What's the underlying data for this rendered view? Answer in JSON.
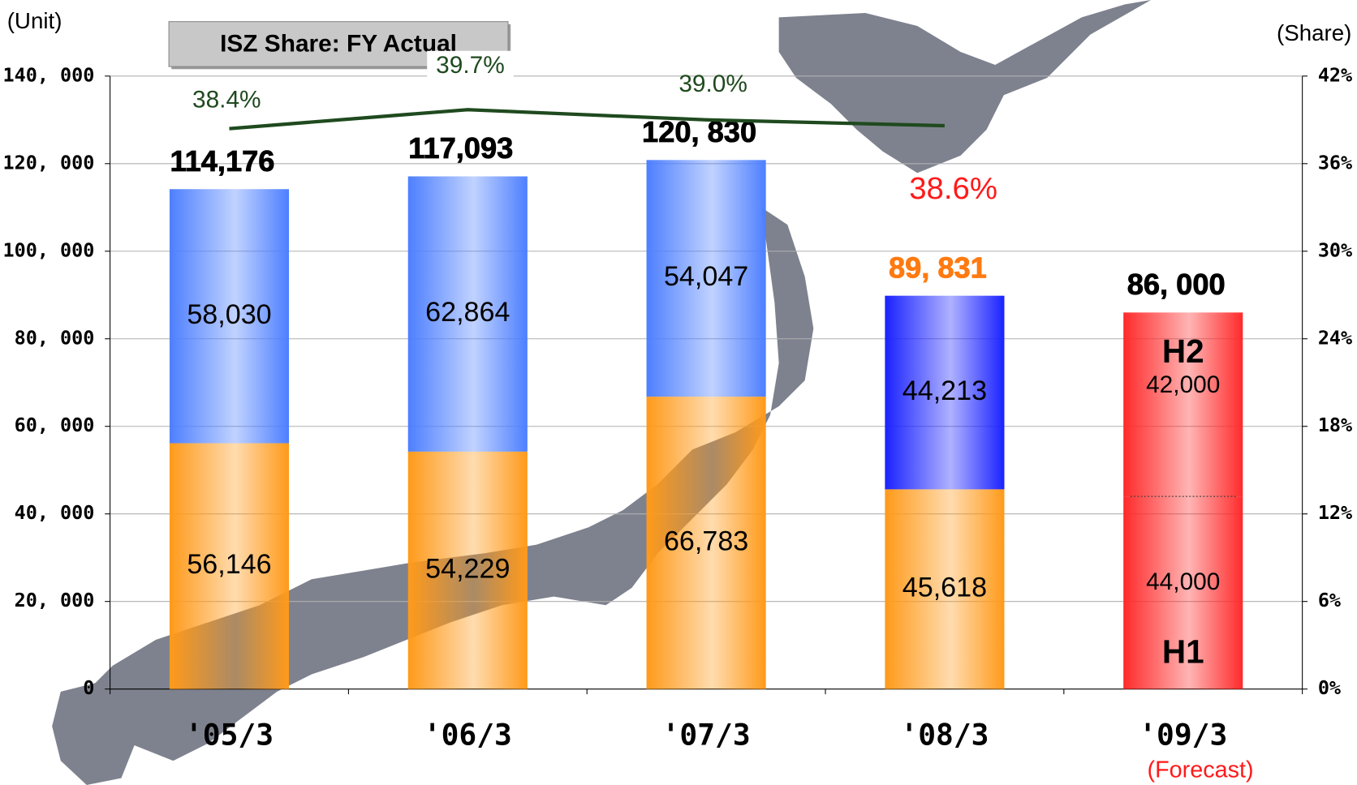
{
  "chart_data": {
    "type": "bar",
    "stacked": true,
    "title": "ISZ Share: FY Actual",
    "ylabel": "(Unit)",
    "y2label": "(Share)",
    "categories": [
      "'05/3",
      "'06/3",
      "'07/3",
      "'08/3",
      "'09/3"
    ],
    "category_notes": [
      null,
      null,
      null,
      null,
      "(Forecast)"
    ],
    "series": [
      {
        "values": [
          56146,
          54229,
          66783,
          45618,
          44000
        ],
        "value_labels": [
          "56,146",
          "54,229",
          "66,783",
          "45,618",
          "44,000"
        ],
        "colors": [
          "#ff9a1a",
          "#ff9a1a",
          "#ff9a1a",
          "#ff9a1a",
          "#ff2a2a"
        ]
      },
      {
        "values": [
          58030,
          62864,
          54047,
          44213,
          42000
        ],
        "value_labels": [
          "58,030",
          "62,864",
          "54,047",
          "44,213",
          "42,000"
        ],
        "colors": [
          "#4d7fff",
          "#4d7fff",
          "#4d7fff",
          "#1a22ff",
          "#ff2a2a"
        ]
      }
    ],
    "segment_annotations": [
      "H1",
      "H2"
    ],
    "totals": {
      "values": [
        114176,
        117093,
        120830,
        89831,
        86000
      ],
      "value_labels": [
        "114,176",
        "117,093",
        "120, 830",
        "89, 831",
        "86, 000"
      ],
      "colors": [
        "#000000",
        "#000000",
        "#000000",
        "#ff7a10",
        "#000000"
      ]
    },
    "share": {
      "type": "line",
      "axis": "y2",
      "color": "#1f4a1f",
      "values": [
        38.4,
        39.7,
        39.0,
        38.6,
        null
      ],
      "value_labels": [
        "38.4%",
        "39.7%",
        "39.0%",
        "38.6%",
        null
      ],
      "label_colors": [
        "#1f4a1f",
        "#1f4a1f",
        "#1f4a1f",
        "#ff1a1a",
        null
      ]
    },
    "ylim": [
      0,
      140000
    ],
    "yticks": [
      0,
      {
        "value": 20000,
        "label": "20, 000"
      },
      {
        "value": 40000,
        "label": "40, 000"
      },
      {
        "value": 60000,
        "label": "60, 000"
      },
      {
        "value": 80000,
        "label": "80, 000"
      },
      {
        "value": 100000,
        "label": "100, 000"
      },
      {
        "value": 120000,
        "label": "120, 000"
      },
      {
        "value": 140000,
        "label": "140, 000"
      }
    ],
    "y2lim": [
      0,
      42
    ],
    "y2ticks": [
      {
        "value": 0,
        "label": "0%"
      },
      {
        "value": 6,
        "label": "6%"
      },
      {
        "value": 12,
        "label": "12%"
      },
      {
        "value": 18,
        "label": "18%"
      },
      {
        "value": 24,
        "label": "24%"
      },
      {
        "value": 30,
        "label": "30%"
      },
      {
        "value": 36,
        "label": "36%"
      },
      {
        "value": 42,
        "label": "42%"
      }
    ],
    "grid": true
  }
}
